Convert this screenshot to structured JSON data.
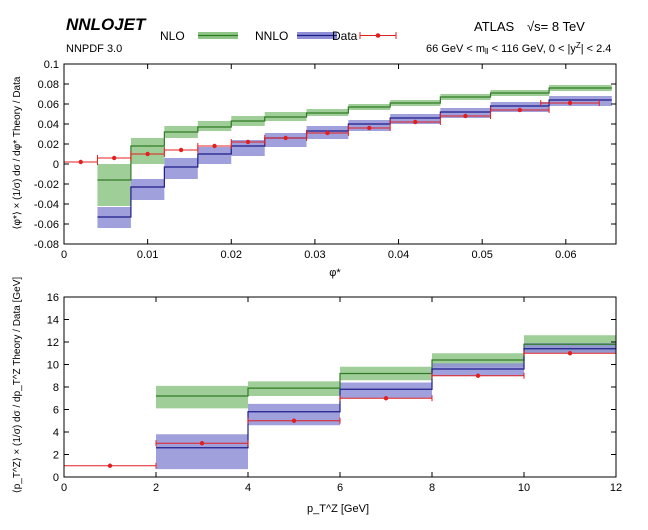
{
  "header": {
    "brand": "NNLOJET",
    "pdf": "NNPDF 3.0",
    "experiment": "ATLAS",
    "sqrts_prefix": "√s",
    "sqrts_value": "= 8 TeV",
    "cuts_a": "66 GeV < m",
    "cuts_a_sub": "ll",
    "cuts_b": " < 116 GeV,  0 < |y",
    "cuts_b_sup": "Z",
    "cuts_c": "| < 2.4"
  },
  "legend": {
    "position": "top",
    "items": [
      {
        "label": "NLO",
        "color": "#4e9a3c"
      },
      {
        "label": "NNLO",
        "color": "#3a3aa0"
      },
      {
        "label": "Data",
        "color": "#e02020"
      }
    ]
  },
  "chart_data": [
    {
      "type": "step-band",
      "xlabel": "φ*",
      "ylabel": "⟨φ*⟩ × (1/σ) dσ / dφ*  Theory / Data",
      "xlim": [
        0,
        0.066
      ],
      "ylim": [
        -0.08,
        0.1
      ],
      "xticks": [
        0,
        0.01,
        0.02,
        0.03,
        0.04,
        0.05,
        0.06
      ],
      "xtick_labels": [
        "0",
        "0.01",
        "0.02",
        "0.03",
        "0.04",
        "0.05",
        "0.06"
      ],
      "yticks": [
        -0.08,
        -0.06,
        -0.04,
        -0.02,
        0,
        0.02,
        0.04,
        0.06,
        0.08,
        0.1
      ],
      "ytick_labels": [
        "-0.08",
        "-0.06",
        "-0.04",
        "-0.02",
        "0",
        "0.02",
        "0.04",
        "0.06",
        "0.08",
        "0.1"
      ],
      "bins": [
        0,
        0.004,
        0.008,
        0.012,
        0.016,
        0.02,
        0.024,
        0.029,
        0.034,
        0.039,
        0.045,
        0.051,
        0.058,
        0.0655
      ],
      "series": [
        {
          "name": "NLO",
          "color": "#4e9a3c",
          "central": [
            null,
            -0.016,
            0.018,
            0.032,
            0.037,
            0.043,
            0.047,
            0.051,
            0.057,
            0.061,
            0.067,
            0.071,
            0.076,
            0.082
          ],
          "low": [
            null,
            -0.042,
            0.0,
            0.026,
            0.033,
            0.038,
            0.043,
            0.048,
            0.054,
            0.058,
            0.064,
            0.068,
            0.073,
            0.078
          ],
          "high": [
            null,
            0.0,
            0.026,
            0.038,
            0.043,
            0.048,
            0.052,
            0.055,
            0.06,
            0.064,
            0.07,
            0.074,
            0.079,
            0.085
          ]
        },
        {
          "name": "NNLO",
          "color": "#3a3aa0",
          "central": [
            null,
            -0.053,
            -0.023,
            -0.003,
            0.01,
            0.018,
            0.026,
            0.033,
            0.04,
            0.046,
            0.052,
            0.058,
            0.064,
            0.069
          ],
          "low": [
            null,
            -0.064,
            -0.036,
            -0.015,
            0.0,
            0.008,
            0.017,
            0.025,
            0.033,
            0.04,
            0.046,
            0.052,
            0.058,
            0.063
          ],
          "high": [
            null,
            -0.043,
            -0.015,
            0.006,
            0.017,
            0.024,
            0.031,
            0.038,
            0.044,
            0.05,
            0.056,
            0.062,
            0.068,
            0.073
          ]
        }
      ],
      "data": {
        "name": "Data",
        "color": "#e02020",
        "x": [
          0.002,
          0.006,
          0.01,
          0.014,
          0.018,
          0.022,
          0.0265,
          0.0315,
          0.0365,
          0.042,
          0.048,
          0.0545,
          0.0605
        ],
        "y": [
          0.002,
          0.006,
          0.01,
          0.014,
          0.018,
          0.022,
          0.026,
          0.031,
          0.036,
          0.042,
          0.048,
          0.054,
          0.061
        ],
        "xerr": [
          0.002,
          0.002,
          0.002,
          0.002,
          0.002,
          0.002,
          0.0025,
          0.0025,
          0.0025,
          0.003,
          0.003,
          0.0035,
          0.0035
        ]
      }
    },
    {
      "type": "step-band",
      "xlabel": "p_T^Z [GeV]",
      "ylabel": "⟨p_T^Z⟩ × (1/σ) dσ / dp_T^Z  Theory / Data  [GeV]",
      "xlim": [
        0,
        12
      ],
      "ylim": [
        0,
        16
      ],
      "xticks": [
        0,
        2,
        4,
        6,
        8,
        10,
        12
      ],
      "xtick_labels": [
        "0",
        "2",
        "4",
        "6",
        "8",
        "10",
        "12"
      ],
      "yticks": [
        0,
        2,
        4,
        6,
        8,
        10,
        12,
        14,
        16
      ],
      "ytick_labels": [
        "0",
        "2",
        "4",
        "6",
        "8",
        "10",
        "12",
        "14",
        "16"
      ],
      "bins": [
        0,
        2,
        4,
        6,
        8,
        10,
        12
      ],
      "series": [
        {
          "name": "NLO",
          "color": "#4e9a3c",
          "central": [
            null,
            7.2,
            7.9,
            9.2,
            10.4,
            11.8
          ],
          "low": [
            null,
            6.1,
            7.2,
            8.6,
            9.8,
            11.1
          ],
          "high": [
            null,
            8.1,
            8.5,
            9.8,
            11.0,
            12.6
          ]
        },
        {
          "name": "NNLO",
          "color": "#3a3aa0",
          "central": [
            null,
            2.6,
            5.8,
            7.8,
            9.6,
            11.4
          ],
          "low": [
            null,
            0.7,
            4.6,
            7.0,
            9.0,
            11.0
          ],
          "high": [
            null,
            3.8,
            6.5,
            8.4,
            10.1,
            11.9
          ]
        }
      ],
      "data": {
        "name": "Data",
        "color": "#e02020",
        "x": [
          1,
          3,
          5,
          7,
          9,
          11
        ],
        "y": [
          1.0,
          3.0,
          5.0,
          7.0,
          9.0,
          11.0
        ],
        "xerr": [
          1,
          1,
          1,
          1,
          1,
          1
        ]
      }
    }
  ]
}
